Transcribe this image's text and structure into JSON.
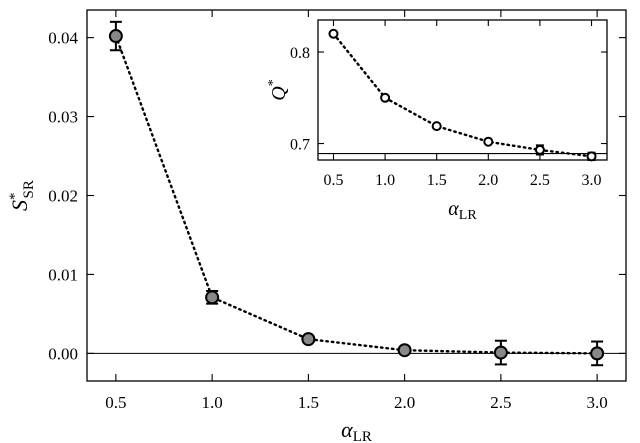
{
  "chart_data": [
    {
      "type": "line",
      "name": "main",
      "x": [
        0.5,
        1.0,
        1.5,
        2.0,
        2.5,
        3.0
      ],
      "y": [
        0.0402,
        0.0071,
        0.0018,
        0.0004,
        0.0001,
        0.0
      ],
      "yerr": [
        0.0018,
        0.0008,
        0.0003,
        0.0003,
        0.0015,
        0.0015
      ],
      "xlabel": "α",
      "xlabel_sub": "LR",
      "ylabel": "S",
      "ylabel_sup": "*",
      "ylabel_sub": "SR",
      "xlim": [
        0.35,
        3.15
      ],
      "ylim": [
        -0.0035,
        0.0435
      ],
      "xticks": [
        "0.5",
        "1.0",
        "1.5",
        "2.0",
        "2.5",
        "3.0"
      ],
      "yticks": [
        "0.00",
        "0.01",
        "0.02",
        "0.03",
        "0.04"
      ],
      "reference_line_y": 0.0,
      "line_style": "dotted",
      "marker": "filled gray circle",
      "marker_color": "#888888"
    },
    {
      "type": "line",
      "name": "inset",
      "x": [
        0.5,
        1.0,
        1.5,
        2.0,
        2.5,
        3.0
      ],
      "y": [
        0.82,
        0.75,
        0.719,
        0.702,
        0.693,
        0.686
      ],
      "yerr": [
        0.0,
        0.0,
        0.0,
        0.0,
        0.005,
        0.004
      ],
      "xlabel": "α",
      "xlabel_sub": "LR",
      "ylabel": "Q",
      "ylabel_sup": "*",
      "xlim": [
        0.35,
        3.15
      ],
      "ylim": [
        0.682,
        0.835
      ],
      "xticks": [
        "0.5",
        "1.0",
        "1.5",
        "2.0",
        "2.5",
        "3.0"
      ],
      "yticks": [
        "0.7",
        "0.8"
      ],
      "reference_line_y": 0.689,
      "line_style": "dotted",
      "marker": "open circle"
    }
  ]
}
